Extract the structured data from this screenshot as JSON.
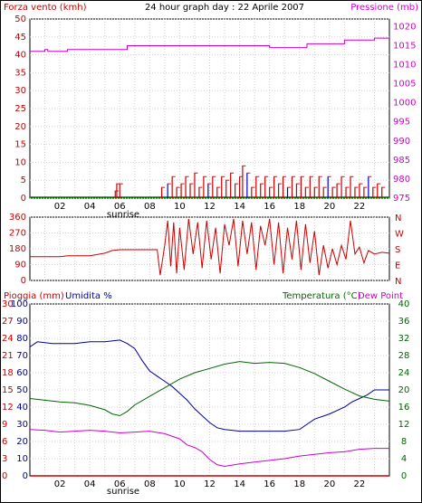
{
  "header": {
    "title": "24 hour graph day : 22 Aprile 2007",
    "wind_label": "Forza vento (kmh)",
    "pressure_label": "Pressione (mb)"
  },
  "footer": {
    "sunrise_label": "sunrise"
  },
  "colors": {
    "background": "#ffffff",
    "border": "#000000",
    "wind": "#cc0000",
    "wind_gust": "#ff0000",
    "wind_calm": "#008000",
    "wind_blue": "#0000cc",
    "pressure": "#cc00cc",
    "direction": "#cc0000",
    "rain": "#cc0000",
    "humidity": "#000099",
    "temperature": "#006600",
    "dewpoint": "#cc00cc",
    "axis_red": "#cc0000",
    "axis_blue": "#000099",
    "axis_green": "#006600",
    "axis_magenta": "#cc00cc",
    "grid": "#d0d0d0"
  },
  "chart_data": [
    {
      "type": "bar",
      "title": "24 hour graph day : 22 Aprile 2007",
      "series_labels": [
        "Forza vento (kmh)",
        "Pressione (mb)"
      ],
      "x_ticks": [
        "02",
        "04",
        "06",
        "08",
        "10",
        "12",
        "14",
        "16",
        "18",
        "20",
        "22"
      ],
      "sunrise_label": "sunrise",
      "wind_axis": {
        "ticks": [
          0,
          5,
          10,
          15,
          20,
          25,
          30,
          35,
          40,
          45,
          50
        ],
        "ylim": [
          0,
          50
        ]
      },
      "pressure_axis": {
        "ticks": [
          975,
          980,
          985,
          990,
          995,
          1000,
          1005,
          1010,
          1015,
          1020
        ],
        "ylim": [
          975,
          1022
        ]
      },
      "wind_samples": [
        {
          "hour": 5.7,
          "value": 2
        },
        {
          "hour": 5.8,
          "value": 4
        },
        {
          "hour": 6.0,
          "value": 4
        },
        {
          "hour": 8.8,
          "value": 3
        },
        {
          "hour": 9.2,
          "value": 4
        },
        {
          "hour": 9.5,
          "value": 6
        },
        {
          "hour": 9.8,
          "value": 3
        },
        {
          "hour": 10.1,
          "value": 4
        },
        {
          "hour": 10.4,
          "value": 6
        },
        {
          "hour": 10.7,
          "value": 4
        },
        {
          "hour": 11.0,
          "value": 7
        },
        {
          "hour": 11.3,
          "value": 3
        },
        {
          "hour": 11.6,
          "value": 6
        },
        {
          "hour": 11.9,
          "value": 4
        },
        {
          "hour": 12.2,
          "value": 6
        },
        {
          "hour": 12.5,
          "value": 3
        },
        {
          "hour": 12.8,
          "value": 6
        },
        {
          "hour": 13.1,
          "value": 5
        },
        {
          "hour": 13.4,
          "value": 7
        },
        {
          "hour": 13.7,
          "value": 4
        },
        {
          "hour": 14.0,
          "value": 6
        },
        {
          "hour": 14.2,
          "value": 9
        },
        {
          "hour": 14.5,
          "value": 7
        },
        {
          "hour": 14.8,
          "value": 3
        },
        {
          "hour": 15.1,
          "value": 6
        },
        {
          "hour": 15.4,
          "value": 4
        },
        {
          "hour": 15.7,
          "value": 6
        },
        {
          "hour": 16.0,
          "value": 3
        },
        {
          "hour": 16.3,
          "value": 6
        },
        {
          "hour": 16.6,
          "value": 4
        },
        {
          "hour": 16.9,
          "value": 6
        },
        {
          "hour": 17.2,
          "value": 3
        },
        {
          "hour": 17.5,
          "value": 6
        },
        {
          "hour": 17.8,
          "value": 4
        },
        {
          "hour": 18.1,
          "value": 6
        },
        {
          "hour": 18.4,
          "value": 3
        },
        {
          "hour": 18.7,
          "value": 6
        },
        {
          "hour": 19.0,
          "value": 3
        },
        {
          "hour": 19.3,
          "value": 6
        },
        {
          "hour": 19.6,
          "value": 3
        },
        {
          "hour": 19.9,
          "value": 6
        },
        {
          "hour": 20.2,
          "value": 3
        },
        {
          "hour": 20.5,
          "value": 4
        },
        {
          "hour": 20.8,
          "value": 6
        },
        {
          "hour": 21.1,
          "value": 3
        },
        {
          "hour": 21.4,
          "value": 6
        },
        {
          "hour": 21.7,
          "value": 3
        },
        {
          "hour": 22.0,
          "value": 4
        },
        {
          "hour": 22.3,
          "value": 3
        },
        {
          "hour": 22.6,
          "value": 6
        },
        {
          "hour": 22.9,
          "value": 3
        },
        {
          "hour": 23.2,
          "value": 4
        },
        {
          "hour": 23.5,
          "value": 3
        }
      ],
      "pressure": [
        {
          "hour": 0.0,
          "value": 1013.5
        },
        {
          "hour": 1.0,
          "value": 1013.5
        },
        {
          "hour": 1.0,
          "value": 1014
        },
        {
          "hour": 1.2,
          "value": 1014
        },
        {
          "hour": 1.2,
          "value": 1013.5
        },
        {
          "hour": 2.5,
          "value": 1013.5
        },
        {
          "hour": 2.5,
          "value": 1014
        },
        {
          "hour": 6.5,
          "value": 1014
        },
        {
          "hour": 6.5,
          "value": 1015
        },
        {
          "hour": 16.0,
          "value": 1015
        },
        {
          "hour": 16.0,
          "value": 1014.5
        },
        {
          "hour": 18.5,
          "value": 1014.5
        },
        {
          "hour": 18.5,
          "value": 1015.5
        },
        {
          "hour": 21.0,
          "value": 1015.5
        },
        {
          "hour": 21.0,
          "value": 1016.5
        },
        {
          "hour": 23.0,
          "value": 1016.5
        },
        {
          "hour": 23.0,
          "value": 1017
        },
        {
          "hour": 24.0,
          "value": 1017
        }
      ]
    },
    {
      "type": "line",
      "series_labels": [
        "N",
        "W",
        "S",
        "E",
        "N"
      ],
      "x_ticks": [
        "02",
        "04",
        "06",
        "08",
        "10",
        "12",
        "14",
        "16",
        "18",
        "20",
        "22"
      ],
      "direction_axis": {
        "ticks": [
          0,
          90,
          180,
          270,
          360
        ],
        "ylim": [
          0,
          360
        ]
      },
      "compass_labels": [
        "N",
        "W",
        "S",
        "E",
        "N"
      ],
      "direction": [
        {
          "hour": 0.0,
          "value": 135
        },
        {
          "hour": 2.0,
          "value": 135
        },
        {
          "hour": 2.5,
          "value": 140
        },
        {
          "hour": 4.0,
          "value": 140
        },
        {
          "hour": 5.0,
          "value": 155
        },
        {
          "hour": 5.5,
          "value": 170
        },
        {
          "hour": 6.0,
          "value": 175
        },
        {
          "hour": 8.5,
          "value": 175
        },
        {
          "hour": 8.7,
          "value": 30
        },
        {
          "hour": 9.0,
          "value": 200
        },
        {
          "hour": 9.2,
          "value": 340
        },
        {
          "hour": 9.4,
          "value": 80
        },
        {
          "hour": 9.6,
          "value": 330
        },
        {
          "hour": 9.8,
          "value": 40
        },
        {
          "hour": 10.0,
          "value": 300
        },
        {
          "hour": 10.3,
          "value": 60
        },
        {
          "hour": 10.6,
          "value": 350
        },
        {
          "hour": 10.9,
          "value": 150
        },
        {
          "hour": 11.2,
          "value": 330
        },
        {
          "hour": 11.5,
          "value": 70
        },
        {
          "hour": 11.8,
          "value": 340
        },
        {
          "hour": 12.1,
          "value": 120
        },
        {
          "hour": 12.4,
          "value": 300
        },
        {
          "hour": 12.7,
          "value": 40
        },
        {
          "hour": 13.0,
          "value": 320
        },
        {
          "hour": 13.3,
          "value": 200
        },
        {
          "hour": 13.6,
          "value": 350
        },
        {
          "hour": 13.9,
          "value": 80
        },
        {
          "hour": 14.2,
          "value": 340
        },
        {
          "hour": 14.5,
          "value": 150
        },
        {
          "hour": 14.8,
          "value": 330
        },
        {
          "hour": 15.1,
          "value": 60
        },
        {
          "hour": 15.4,
          "value": 310
        },
        {
          "hour": 15.7,
          "value": 200
        },
        {
          "hour": 16.0,
          "value": 350
        },
        {
          "hour": 16.3,
          "value": 90
        },
        {
          "hour": 16.6,
          "value": 330
        },
        {
          "hour": 16.9,
          "value": 40
        },
        {
          "hour": 17.2,
          "value": 300
        },
        {
          "hour": 17.5,
          "value": 120
        },
        {
          "hour": 17.8,
          "value": 340
        },
        {
          "hour": 18.1,
          "value": 60
        },
        {
          "hour": 18.4,
          "value": 320
        },
        {
          "hour": 18.7,
          "value": 100
        },
        {
          "hour": 19.0,
          "value": 280
        },
        {
          "hour": 19.3,
          "value": 30
        },
        {
          "hour": 19.6,
          "value": 200
        },
        {
          "hour": 19.9,
          "value": 70
        },
        {
          "hour": 20.2,
          "value": 180
        },
        {
          "hour": 20.5,
          "value": 90
        },
        {
          "hour": 20.8,
          "value": 200
        },
        {
          "hour": 21.1,
          "value": 120
        },
        {
          "hour": 21.4,
          "value": 340
        },
        {
          "hour": 21.7,
          "value": 150
        },
        {
          "hour": 22.0,
          "value": 190
        },
        {
          "hour": 22.3,
          "value": 100
        },
        {
          "hour": 22.6,
          "value": 170
        },
        {
          "hour": 23.0,
          "value": 150
        },
        {
          "hour": 23.5,
          "value": 160
        },
        {
          "hour": 24.0,
          "value": 155
        }
      ]
    },
    {
      "type": "line",
      "title": "",
      "series_labels": [
        "Pioggia (mm)",
        "Umidita %",
        "Temperatura (°C)",
        "Dew Point"
      ],
      "x_ticks": [
        "02",
        "04",
        "06",
        "08",
        "10",
        "12",
        "14",
        "16",
        "18",
        "20",
        "22"
      ],
      "sunrise_label": "sunrise",
      "rain_axis": {
        "ticks": [
          0,
          3,
          6,
          9,
          12,
          15,
          18,
          21,
          24,
          27,
          30
        ],
        "ylim": [
          0,
          30
        ]
      },
      "humidity_axis": {
        "ticks": [
          0,
          10,
          20,
          30,
          40,
          50,
          60,
          70,
          80,
          90,
          100
        ],
        "ylim": [
          0,
          100
        ]
      },
      "temperature_axis": {
        "ticks": [
          0,
          4,
          8,
          12,
          16,
          20,
          24,
          28,
          32,
          36,
          40
        ],
        "ylim": [
          0,
          40
        ]
      },
      "rain": [
        {
          "hour": 0,
          "value": 0
        },
        {
          "hour": 24,
          "value": 0
        }
      ],
      "humidity": [
        {
          "hour": 0.0,
          "value": 75
        },
        {
          "hour": 0.5,
          "value": 78
        },
        {
          "hour": 1.5,
          "value": 77
        },
        {
          "hour": 3.0,
          "value": 77
        },
        {
          "hour": 4.0,
          "value": 78
        },
        {
          "hour": 5.0,
          "value": 78
        },
        {
          "hour": 6.0,
          "value": 79
        },
        {
          "hour": 6.5,
          "value": 77
        },
        {
          "hour": 7.0,
          "value": 74
        },
        {
          "hour": 7.5,
          "value": 67
        },
        {
          "hour": 8.0,
          "value": 61
        },
        {
          "hour": 8.5,
          "value": 58
        },
        {
          "hour": 9.0,
          "value": 55
        },
        {
          "hour": 9.5,
          "value": 52
        },
        {
          "hour": 10.0,
          "value": 48
        },
        {
          "hour": 10.5,
          "value": 44
        },
        {
          "hour": 11.0,
          "value": 39
        },
        {
          "hour": 11.5,
          "value": 35
        },
        {
          "hour": 12.0,
          "value": 31
        },
        {
          "hour": 12.5,
          "value": 28
        },
        {
          "hour": 13.0,
          "value": 27
        },
        {
          "hour": 14.0,
          "value": 26
        },
        {
          "hour": 15.0,
          "value": 26
        },
        {
          "hour": 16.0,
          "value": 26
        },
        {
          "hour": 17.0,
          "value": 26
        },
        {
          "hour": 18.0,
          "value": 27
        },
        {
          "hour": 18.5,
          "value": 30
        },
        {
          "hour": 19.0,
          "value": 33
        },
        {
          "hour": 20.0,
          "value": 36
        },
        {
          "hour": 21.0,
          "value": 40
        },
        {
          "hour": 21.5,
          "value": 43
        },
        {
          "hour": 22.0,
          "value": 45
        },
        {
          "hour": 22.5,
          "value": 47
        },
        {
          "hour": 23.0,
          "value": 50
        },
        {
          "hour": 24.0,
          "value": 50
        }
      ],
      "temperature": [
        {
          "hour": 0.0,
          "value": 18
        },
        {
          "hour": 1.0,
          "value": 17.6
        },
        {
          "hour": 2.0,
          "value": 17.2
        },
        {
          "hour": 3.0,
          "value": 17
        },
        {
          "hour": 4.0,
          "value": 16.4
        },
        {
          "hour": 5.0,
          "value": 15.4
        },
        {
          "hour": 5.5,
          "value": 14.4
        },
        {
          "hour": 6.0,
          "value": 14
        },
        {
          "hour": 6.5,
          "value": 15
        },
        {
          "hour": 7.0,
          "value": 16.5
        },
        {
          "hour": 8.0,
          "value": 18.5
        },
        {
          "hour": 9.0,
          "value": 20.5
        },
        {
          "hour": 10.0,
          "value": 22.5
        },
        {
          "hour": 11.0,
          "value": 24
        },
        {
          "hour": 12.0,
          "value": 25
        },
        {
          "hour": 13.0,
          "value": 26
        },
        {
          "hour": 14.0,
          "value": 26.6
        },
        {
          "hour": 15.0,
          "value": 26.2
        },
        {
          "hour": 16.0,
          "value": 26.4
        },
        {
          "hour": 17.0,
          "value": 26.2
        },
        {
          "hour": 18.0,
          "value": 25.2
        },
        {
          "hour": 19.0,
          "value": 23.8
        },
        {
          "hour": 20.0,
          "value": 22
        },
        {
          "hour": 21.0,
          "value": 20.2
        },
        {
          "hour": 22.0,
          "value": 18.6
        },
        {
          "hour": 23.0,
          "value": 17.8
        },
        {
          "hour": 24.0,
          "value": 17.4
        }
      ],
      "dewpoint": [
        {
          "hour": 0.0,
          "value": 10.8
        },
        {
          "hour": 1.0,
          "value": 10.6
        },
        {
          "hour": 2.0,
          "value": 10.2
        },
        {
          "hour": 3.0,
          "value": 10.4
        },
        {
          "hour": 4.0,
          "value": 10.6
        },
        {
          "hour": 5.0,
          "value": 10.4
        },
        {
          "hour": 6.0,
          "value": 10
        },
        {
          "hour": 7.0,
          "value": 10.2
        },
        {
          "hour": 8.0,
          "value": 10.4
        },
        {
          "hour": 9.0,
          "value": 9.8
        },
        {
          "hour": 10.0,
          "value": 8.6
        },
        {
          "hour": 10.5,
          "value": 7.2
        },
        {
          "hour": 11.0,
          "value": 6.6
        },
        {
          "hour": 11.5,
          "value": 5.6
        },
        {
          "hour": 12.0,
          "value": 3.8
        },
        {
          "hour": 12.5,
          "value": 2.6
        },
        {
          "hour": 13.0,
          "value": 2.2
        },
        {
          "hour": 14.0,
          "value": 2.8
        },
        {
          "hour": 15.0,
          "value": 3.2
        },
        {
          "hour": 16.0,
          "value": 3.6
        },
        {
          "hour": 17.0,
          "value": 4
        },
        {
          "hour": 18.0,
          "value": 4.6
        },
        {
          "hour": 19.0,
          "value": 5
        },
        {
          "hour": 20.0,
          "value": 5.4
        },
        {
          "hour": 21.0,
          "value": 5.6
        },
        {
          "hour": 22.0,
          "value": 6.2
        },
        {
          "hour": 23.0,
          "value": 6.4
        },
        {
          "hour": 24.0,
          "value": 6.4
        }
      ]
    }
  ]
}
